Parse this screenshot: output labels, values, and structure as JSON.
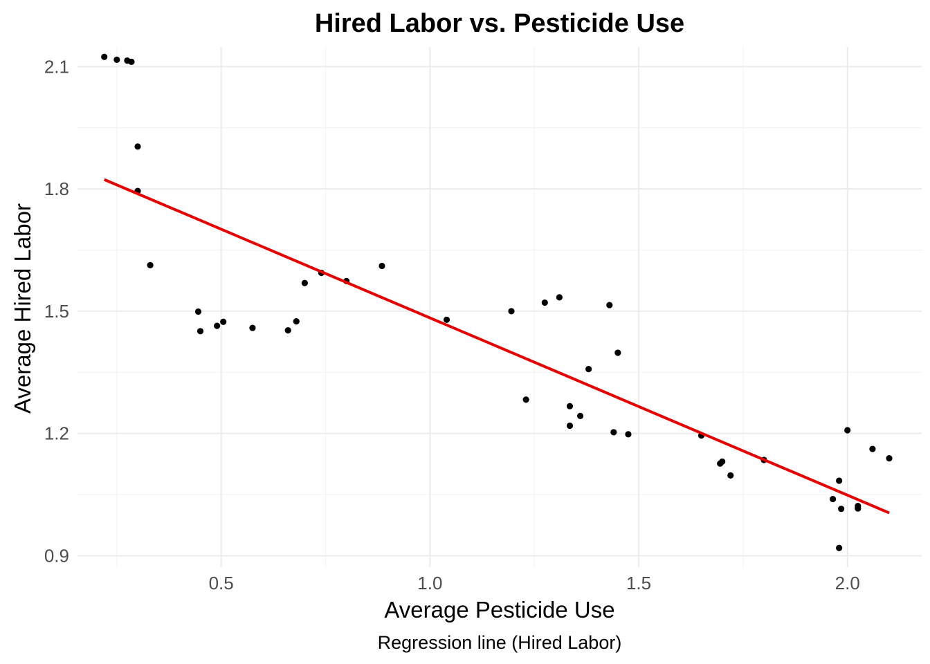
{
  "chart_data": {
    "type": "scatter",
    "title": "Hired Labor vs. Pesticide Use",
    "xlabel": "Average Pesticide Use",
    "ylabel": "Average Hired Labor",
    "caption": "Regression line (Hired Labor)",
    "xlim": [
      0.1558,
      2.1778
    ],
    "ylim": [
      0.8719,
      2.1482
    ],
    "x_ticks": [
      0.5,
      1.0,
      1.5,
      2.0
    ],
    "x_tick_labels": [
      "0.5",
      "1.0",
      "1.5",
      "2.0"
    ],
    "y_ticks": [
      0.9,
      1.2,
      1.5,
      1.8,
      2.1
    ],
    "y_tick_labels": [
      "0.9",
      "1.2",
      "1.5",
      "1.8",
      "2.1"
    ],
    "grid": true,
    "legend": "none",
    "colors": {
      "points": "#000000",
      "regression_line": "#e60000",
      "grid": "#ebebeb",
      "background": "#ffffff"
    },
    "series": [
      {
        "type": "scatter",
        "x": [
          0.22,
          0.25,
          0.275,
          0.285,
          0.3,
          0.3,
          0.33,
          0.445,
          0.45,
          0.49,
          0.505,
          0.575,
          0.66,
          0.68,
          0.7,
          0.74,
          0.8,
          0.885,
          1.04,
          1.195,
          1.23,
          1.275,
          1.31,
          1.335,
          1.335,
          1.36,
          1.38,
          1.43,
          1.44,
          1.45,
          1.475,
          1.65,
          1.695,
          1.7,
          1.72,
          1.8,
          1.965,
          1.98,
          1.985,
          1.98,
          2.0,
          2.025,
          2.025,
          2.06,
          2.1
        ],
        "y": [
          2.124,
          2.117,
          2.115,
          2.112,
          1.904,
          1.795,
          1.613,
          1.499,
          1.451,
          1.464,
          1.474,
          1.459,
          1.453,
          1.475,
          1.569,
          1.594,
          1.574,
          1.611,
          1.479,
          1.5,
          1.283,
          1.521,
          1.534,
          1.267,
          1.219,
          1.243,
          1.358,
          1.515,
          1.203,
          1.398,
          1.198,
          1.195,
          1.126,
          1.131,
          1.097,
          1.135,
          1.039,
          1.084,
          1.015,
          0.919,
          1.208,
          1.022,
          1.016,
          1.162,
          1.139
        ]
      },
      {
        "type": "line",
        "name": "Regression line (Hired Labor)",
        "x": [
          0.22,
          2.1
        ],
        "y": [
          1.823,
          1.005
        ]
      }
    ]
  }
}
